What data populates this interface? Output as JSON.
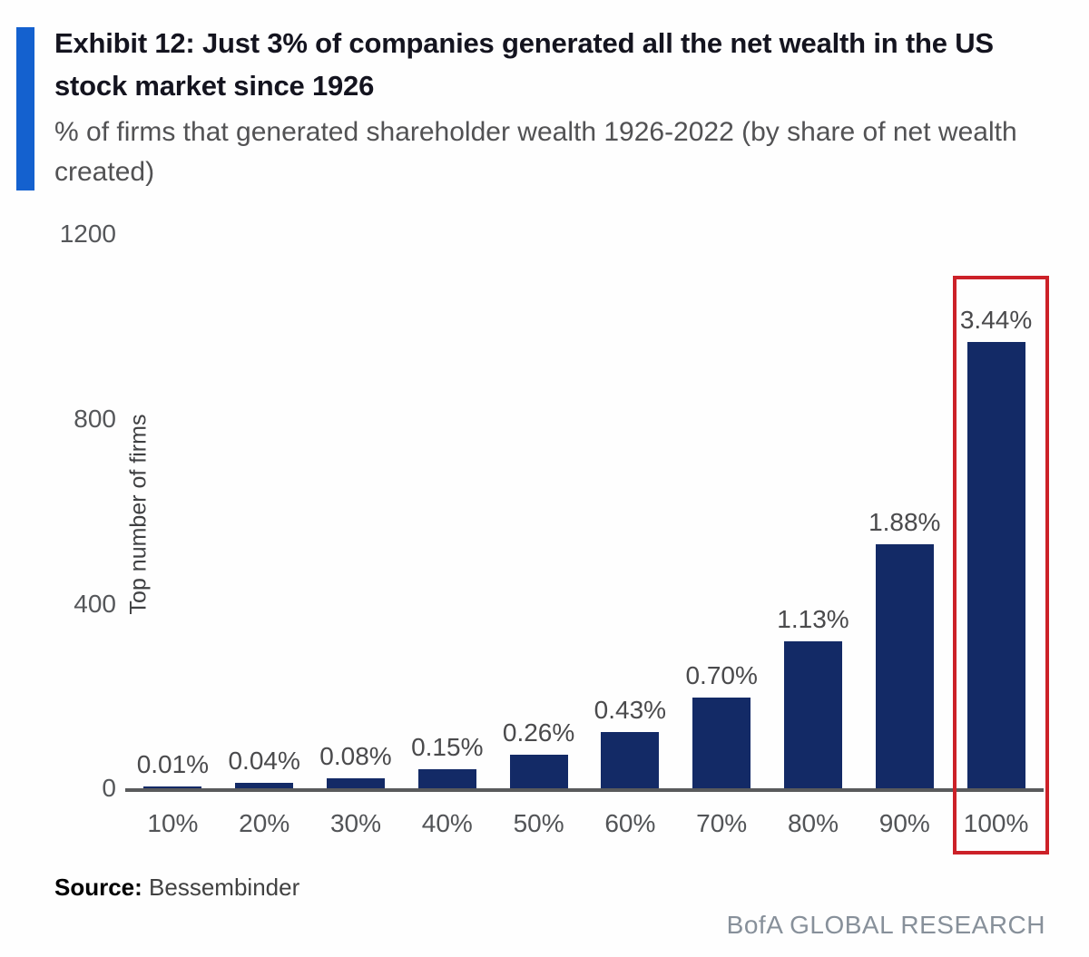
{
  "header": {
    "exhibit_title": "Exhibit 12: Just 3% of companies generated all the net wealth in the US stock market since 1926",
    "subtitle": "% of firms that generated shareholder wealth 1926-2022 (by share of net wealth created)",
    "accent_color": "#1461cf"
  },
  "chart_data": {
    "type": "bar",
    "title": "Exhibit 12: Just 3% of companies generated all the net wealth in the US stock market since 1926",
    "subtitle": "% of firms that generated shareholder wealth 1926-2022 (by share of net wealth created)",
    "categories": [
      "10%",
      "20%",
      "30%",
      "40%",
      "50%",
      "60%",
      "70%",
      "80%",
      "90%",
      "100%"
    ],
    "values": [
      3,
      11,
      22,
      42,
      73,
      121,
      197,
      318,
      528,
      966
    ],
    "bar_labels": [
      "0.01%",
      "0.04%",
      "0.08%",
      "0.15%",
      "0.26%",
      "0.43%",
      "0.70%",
      "1.13%",
      "1.88%",
      "3.44%"
    ],
    "xlabel": "",
    "ylabel": "Top number of firms",
    "ylim": [
      0,
      1200
    ],
    "yticks": [
      0,
      400,
      800,
      1200
    ],
    "ytick_labels_top_to_bottom": [
      "1200",
      "800",
      "400",
      "0"
    ],
    "grid": false,
    "legend": "none",
    "bar_color": "#132a66",
    "axis_line_color": "#595a5c",
    "highlight": {
      "category": "100%",
      "box_color": "#cc2128"
    }
  },
  "footer": {
    "source_label": "Source:",
    "source_value": "Bessembinder",
    "brand": "BofA GLOBAL RESEARCH"
  }
}
